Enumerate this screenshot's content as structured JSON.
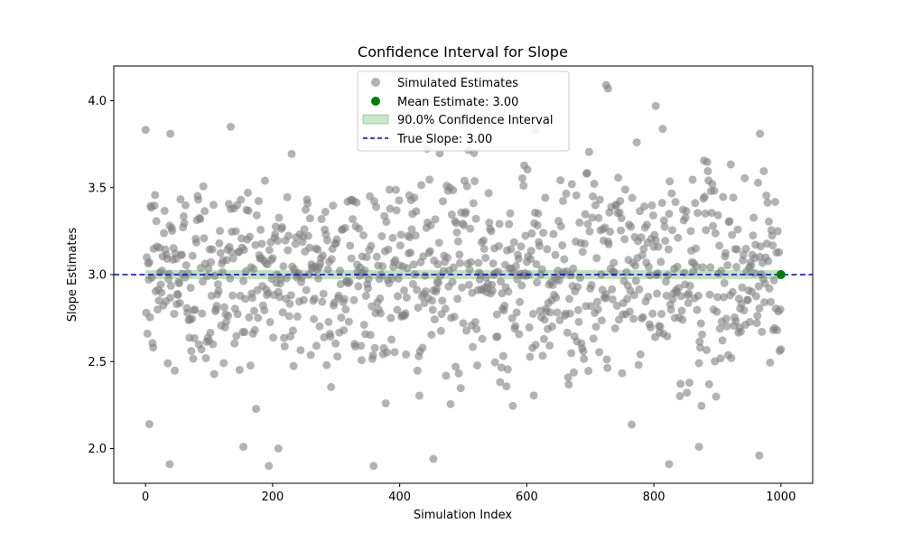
{
  "chart_data": {
    "type": "scatter",
    "title": "Confidence Interval for Slope",
    "xlabel": "Simulation Index",
    "ylabel": "Slope Estimates",
    "xlim": [
      -50,
      1050
    ],
    "ylim": [
      1.8,
      4.2
    ],
    "xticks": [
      0,
      200,
      400,
      600,
      800,
      1000
    ],
    "yticks": [
      2.0,
      2.5,
      3.0,
      3.5,
      4.0
    ],
    "xtick_labels": [
      "0",
      "200",
      "400",
      "600",
      "800",
      "1000"
    ],
    "ytick_labels": [
      "2.0",
      "2.5",
      "3.0",
      "3.5",
      "4.0"
    ],
    "grid": false,
    "legend_position": "top-center",
    "scatter_series": {
      "name": "Simulated Estimates",
      "color": "#808080",
      "count": 1000,
      "mean": 3.0,
      "sd": 0.3,
      "sample_points": [
        {
          "x": 6,
          "y": 2.14
        },
        {
          "x": 38,
          "y": 1.91
        },
        {
          "x": 39,
          "y": 3.81
        },
        {
          "x": 134,
          "y": 3.85
        },
        {
          "x": 154,
          "y": 2.01
        },
        {
          "x": 209,
          "y": 2.0
        },
        {
          "x": 453,
          "y": 1.94
        },
        {
          "x": 614,
          "y": 3.83
        },
        {
          "x": 725,
          "y": 4.09
        },
        {
          "x": 728,
          "y": 4.07
        },
        {
          "x": 803,
          "y": 3.97
        },
        {
          "x": 824,
          "y": 1.91
        },
        {
          "x": 871,
          "y": 2.01
        },
        {
          "x": 966,
          "y": 1.96
        },
        {
          "x": 967,
          "y": 3.81
        },
        {
          "x": 1000,
          "y": 2.57
        }
      ]
    },
    "mean_estimate": {
      "name": "Mean Estimate: 3.00",
      "x": 1000,
      "y": 3.0,
      "color": "#008000"
    },
    "confidence_interval": {
      "name": "90.0% Confidence Interval",
      "lower": 2.99,
      "upper": 3.01,
      "x_range": [
        0,
        1000
      ],
      "color": "#2ca02c"
    },
    "true_slope": {
      "name": "True Slope: 3.00",
      "y": 3.0,
      "color": "#0000cd"
    }
  }
}
